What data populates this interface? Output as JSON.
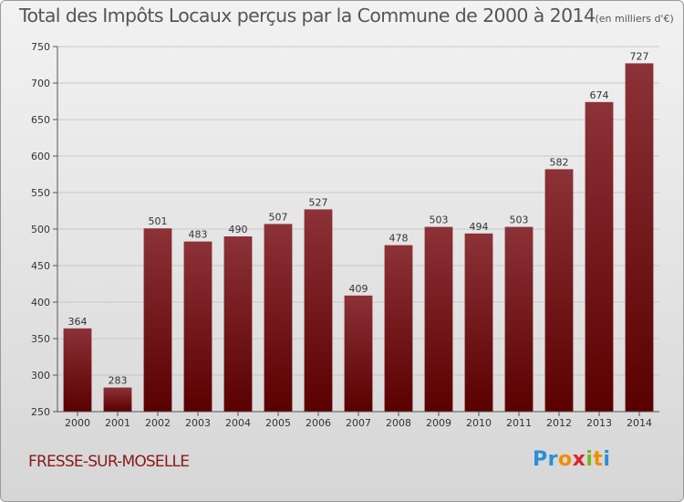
{
  "title": {
    "main": "Total des Impôts Locaux perçus par la Commune de 2000 à 2014",
    "unit": "(en milliers d'€)"
  },
  "commune": "FRESSE-SUR-MOSELLE",
  "logo": {
    "letters": [
      "P",
      "r",
      "o",
      "x",
      "i",
      "t",
      "i"
    ],
    "colors": [
      "#2a8fd6",
      "#2a8fd6",
      "#f28c00",
      "#d8262e",
      "#7ab51d",
      "#f28c00",
      "#2a8fd6"
    ]
  },
  "colors": {
    "bar_top": "#8c3238",
    "bar_bottom": "#5a0000",
    "grid": "#c8c8c8"
  },
  "chart_data": {
    "type": "bar",
    "title": "Total des Impôts Locaux perçus par la Commune de 2000 à 2014",
    "xlabel": "",
    "ylabel": "",
    "categories": [
      "2000",
      "2001",
      "2002",
      "2003",
      "2004",
      "2005",
      "2006",
      "2007",
      "2008",
      "2009",
      "2010",
      "2011",
      "2012",
      "2013",
      "2014"
    ],
    "values": [
      364,
      283,
      501,
      483,
      490,
      507,
      527,
      409,
      478,
      503,
      494,
      503,
      582,
      674,
      727
    ],
    "ylim": [
      250,
      750
    ],
    "yticks": [
      250,
      300,
      350,
      400,
      450,
      500,
      550,
      600,
      650,
      700,
      750
    ],
    "grid": true
  }
}
